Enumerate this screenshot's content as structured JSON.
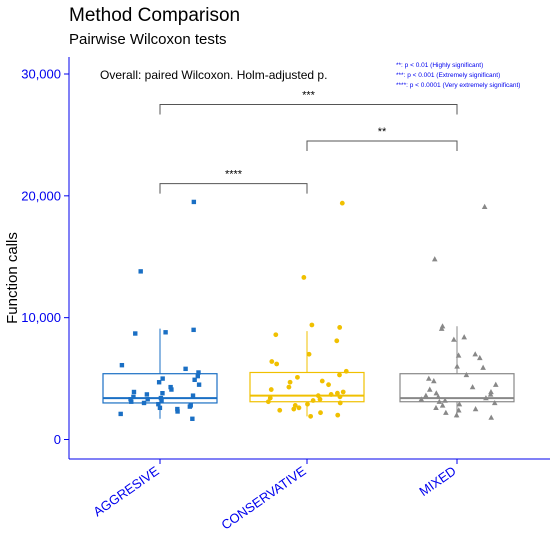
{
  "chart_data": {
    "type": "box",
    "title": "Method Comparison",
    "subtitle": "Pairwise Wilcoxon tests",
    "ylabel": "Function calls",
    "xlabel": "",
    "ylim": [
      -1500,
      32000
    ],
    "yticks": [
      0,
      10000,
      20000,
      30000
    ],
    "ytick_labels": [
      "0",
      "10,000",
      "20,000",
      "30,000"
    ],
    "categories": [
      "AGGRESIVE",
      "CONSERVATIVE",
      "MIXED"
    ],
    "annotation": "Overall: paired Wilcoxon. Holm-adjusted p.",
    "significance_legend": [
      "**: p < 0.01 (Highly significant)",
      "***: p < 0.001  (Extremely significant)",
      "****: p < 0.0001 (Very extremely significant)"
    ],
    "comparisons": [
      {
        "from": "AGGRESIVE",
        "to": "CONSERVATIVE",
        "label": "****",
        "y": 21000
      },
      {
        "from": "CONSERVATIVE",
        "to": "MIXED",
        "label": "**",
        "y": 24500
      },
      {
        "from": "AGGRESIVE",
        "to": "MIXED",
        "label": "***",
        "y": 27500
      }
    ],
    "series": [
      {
        "name": "AGGRESIVE",
        "color": "#1a6fc4",
        "shape": "square",
        "box": {
          "q1": 3000,
          "median": 3400,
          "q3": 5400,
          "whisker_low": 1700,
          "whisker_high": 9100
        },
        "points": [
          19500,
          13800,
          9000,
          8800,
          8700,
          6100,
          5800,
          5500,
          5200,
          5000,
          4900,
          4700,
          4500,
          4300,
          4100,
          3900,
          3800,
          3700,
          3600,
          3500,
          3400,
          3300,
          3300,
          3200,
          3100,
          3000,
          2900,
          2800,
          2700,
          2600,
          2500,
          2300,
          2100,
          1700
        ]
      },
      {
        "name": "CONSERVATIVE",
        "color": "#f0c000",
        "shape": "circle",
        "box": {
          "q1": 3100,
          "median": 3600,
          "q3": 5500,
          "whisker_low": 1900,
          "whisker_high": 8900
        },
        "points": [
          19400,
          13300,
          9400,
          9200,
          8600,
          8100,
          7000,
          6400,
          6200,
          5600,
          5300,
          5100,
          4800,
          4700,
          4500,
          4300,
          4100,
          3900,
          3800,
          3700,
          3600,
          3500,
          3400,
          3300,
          3200,
          3100,
          3000,
          2900,
          2800,
          2600,
          2500,
          2400,
          2200,
          2000,
          1900
        ]
      },
      {
        "name": "MIXED",
        "color": "#888888",
        "shape": "triangle",
        "box": {
          "q1": 3100,
          "median": 3400,
          "q3": 5400,
          "whisker_low": 1800,
          "whisker_high": 9300
        },
        "points": [
          19100,
          14800,
          9300,
          9100,
          8400,
          8200,
          7000,
          6900,
          6700,
          6000,
          5900,
          5300,
          5000,
          4800,
          4500,
          4300,
          4100,
          3900,
          3800,
          3700,
          3600,
          3500,
          3400,
          3300,
          3200,
          3100,
          3000,
          2900,
          2800,
          2600,
          2500,
          2400,
          2200,
          2000,
          1800
        ]
      }
    ]
  }
}
